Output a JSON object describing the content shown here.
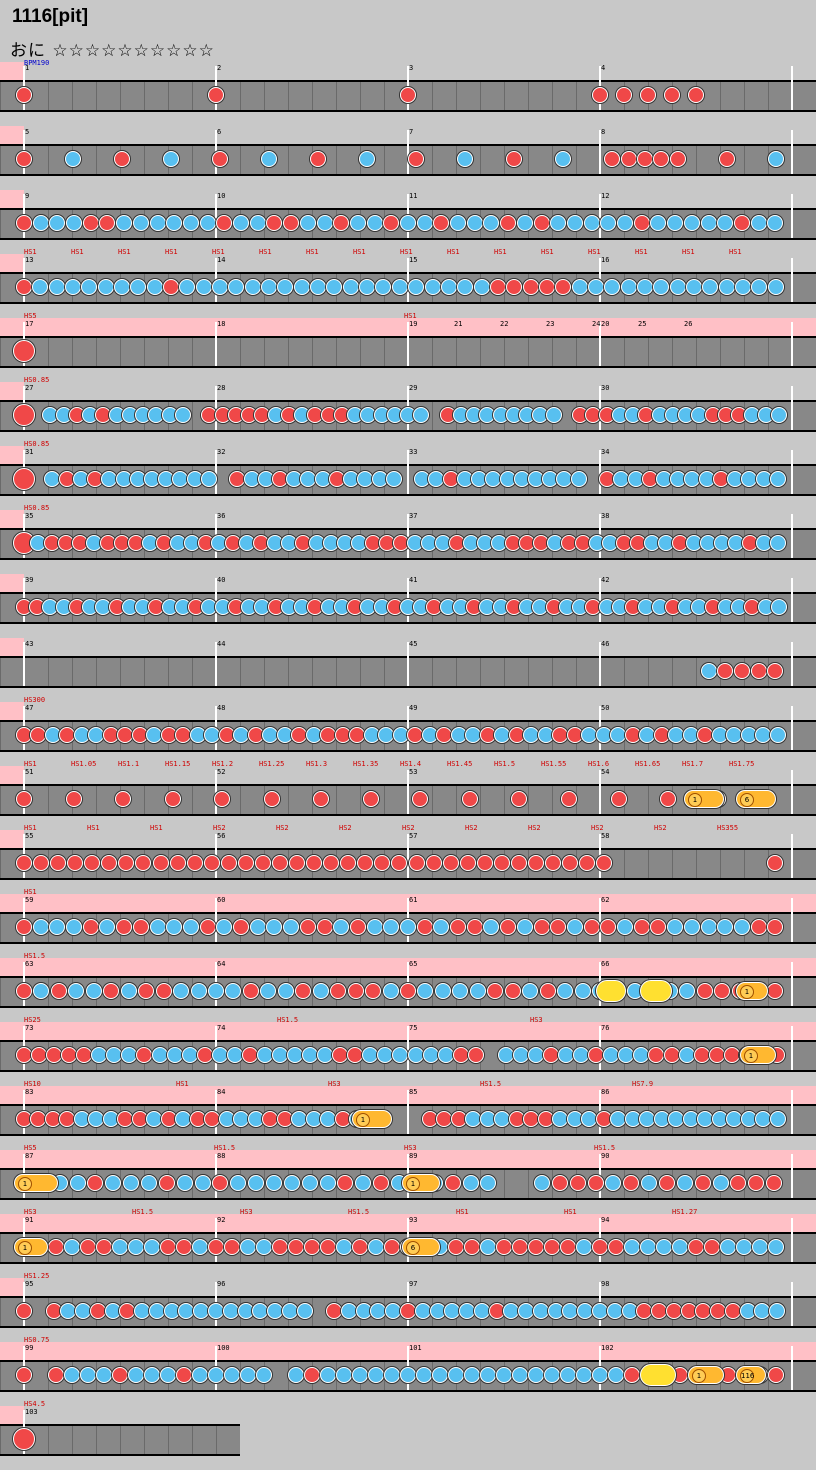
{
  "header": {
    "title": "1116[pit]",
    "difficulty": "おに ☆☆☆☆☆☆☆☆☆☆"
  },
  "colors": {
    "don": "#f04848",
    "ka": "#58c0f0",
    "roll": "#ffb830",
    "balloon": "#ffe030",
    "gogo": "#ffc0c6",
    "lane": "#7a7a7a",
    "background": "#c8c8c8"
  },
  "rows": [
    {
      "measures": [
        "1",
        "2",
        "3",
        "4"
      ],
      "bpm": "BPM190",
      "hs": []
    },
    {
      "measures": [
        "5",
        "6",
        "7",
        "8"
      ],
      "hs": []
    },
    {
      "measures": [
        "9",
        "10",
        "11",
        "12"
      ],
      "hs": []
    },
    {
      "measures": [
        "13",
        "14",
        "15",
        "16"
      ],
      "hs": [
        "HS1",
        "HS1",
        "HS1",
        "HS1",
        "HS1",
        "HS1",
        "HS1",
        "HS1",
        "HS1",
        "HS1",
        "HS1",
        "HS1",
        "HS1",
        "HS1",
        "HS1",
        "HS1"
      ]
    },
    {
      "measures": [
        "17",
        "18",
        "19",
        "20",
        "21",
        "22",
        "23",
        "24",
        "25",
        "26"
      ],
      "hs": [
        "HS5",
        "HS1"
      ]
    },
    {
      "measures": [
        "27",
        "28",
        "29",
        "30"
      ],
      "hs": [
        "HS0.85"
      ]
    },
    {
      "measures": [
        "31",
        "32",
        "33",
        "34"
      ],
      "hs": [
        "HS0.85"
      ]
    },
    {
      "measures": [
        "35",
        "36",
        "37",
        "38"
      ],
      "hs": [
        "HS0.85"
      ]
    },
    {
      "measures": [
        "39",
        "40",
        "41",
        "42"
      ],
      "hs": []
    },
    {
      "measures": [
        "43",
        "44",
        "45",
        "46"
      ],
      "hs": []
    },
    {
      "measures": [
        "47",
        "48",
        "49",
        "50"
      ],
      "hs": [
        "HS300"
      ]
    },
    {
      "measures": [
        "51",
        "52",
        "53",
        "54"
      ],
      "hs": [
        "HS1",
        "HS1.05",
        "HS1.1",
        "HS1.15",
        "HS1.2",
        "HS1.25",
        "HS1.3",
        "HS1.35",
        "HS1.4",
        "HS1.45",
        "HS1.5",
        "HS1.55",
        "HS1.6",
        "HS1.65",
        "HS1.7",
        "HS1.75"
      ]
    },
    {
      "measures": [
        "55",
        "56",
        "57",
        "58"
      ],
      "hs": [
        "HS1",
        "HS1",
        "HS1",
        "HS2",
        "HS2",
        "HS2",
        "HS2",
        "HS2",
        "HS2",
        "HS2",
        "HS2",
        "HS355"
      ]
    },
    {
      "measures": [
        "59",
        "60",
        "61",
        "62"
      ],
      "hs": [
        "HS1"
      ]
    },
    {
      "measures": [
        "63",
        "64",
        "65",
        "66"
      ],
      "hs": [
        "HS1.5"
      ]
    },
    {
      "measures": [
        "73",
        "74",
        "75",
        "76"
      ],
      "hs": [
        "HS25",
        "HS1.5",
        "HS3"
      ]
    },
    {
      "measures": [
        "83",
        "84",
        "85",
        "86"
      ],
      "hs": [
        "HS10",
        "HS1",
        "HS3",
        "HS1.5",
        "HS7.9"
      ]
    },
    {
      "measures": [
        "87",
        "88",
        "89",
        "90"
      ],
      "hs": [
        "HS5",
        "HS1.5",
        "HS3",
        "HS1.5"
      ]
    },
    {
      "measures": [
        "91",
        "92",
        "93",
        "94"
      ],
      "hs": [
        "HS3",
        "HS1.5",
        "HS3",
        "HS1.5",
        "HS1",
        "HS1",
        "HS1.27"
      ]
    },
    {
      "measures": [
        "95",
        "96",
        "97",
        "98"
      ],
      "hs": [
        "HS1.25"
      ]
    },
    {
      "measures": [
        "99",
        "100",
        "101",
        "102"
      ],
      "hs": [
        "HS0.75"
      ]
    },
    {
      "measures": [
        "103"
      ],
      "hs": [
        "HS4.5"
      ]
    }
  ],
  "rolls": {
    "r58a": "1",
    "r58b": "6",
    "r66": "1",
    "r76": "1",
    "r84": "1",
    "r87": "1",
    "r89": "1",
    "r91": "1",
    "r93": "6",
    "r102a": "1",
    "r102b": "116"
  }
}
